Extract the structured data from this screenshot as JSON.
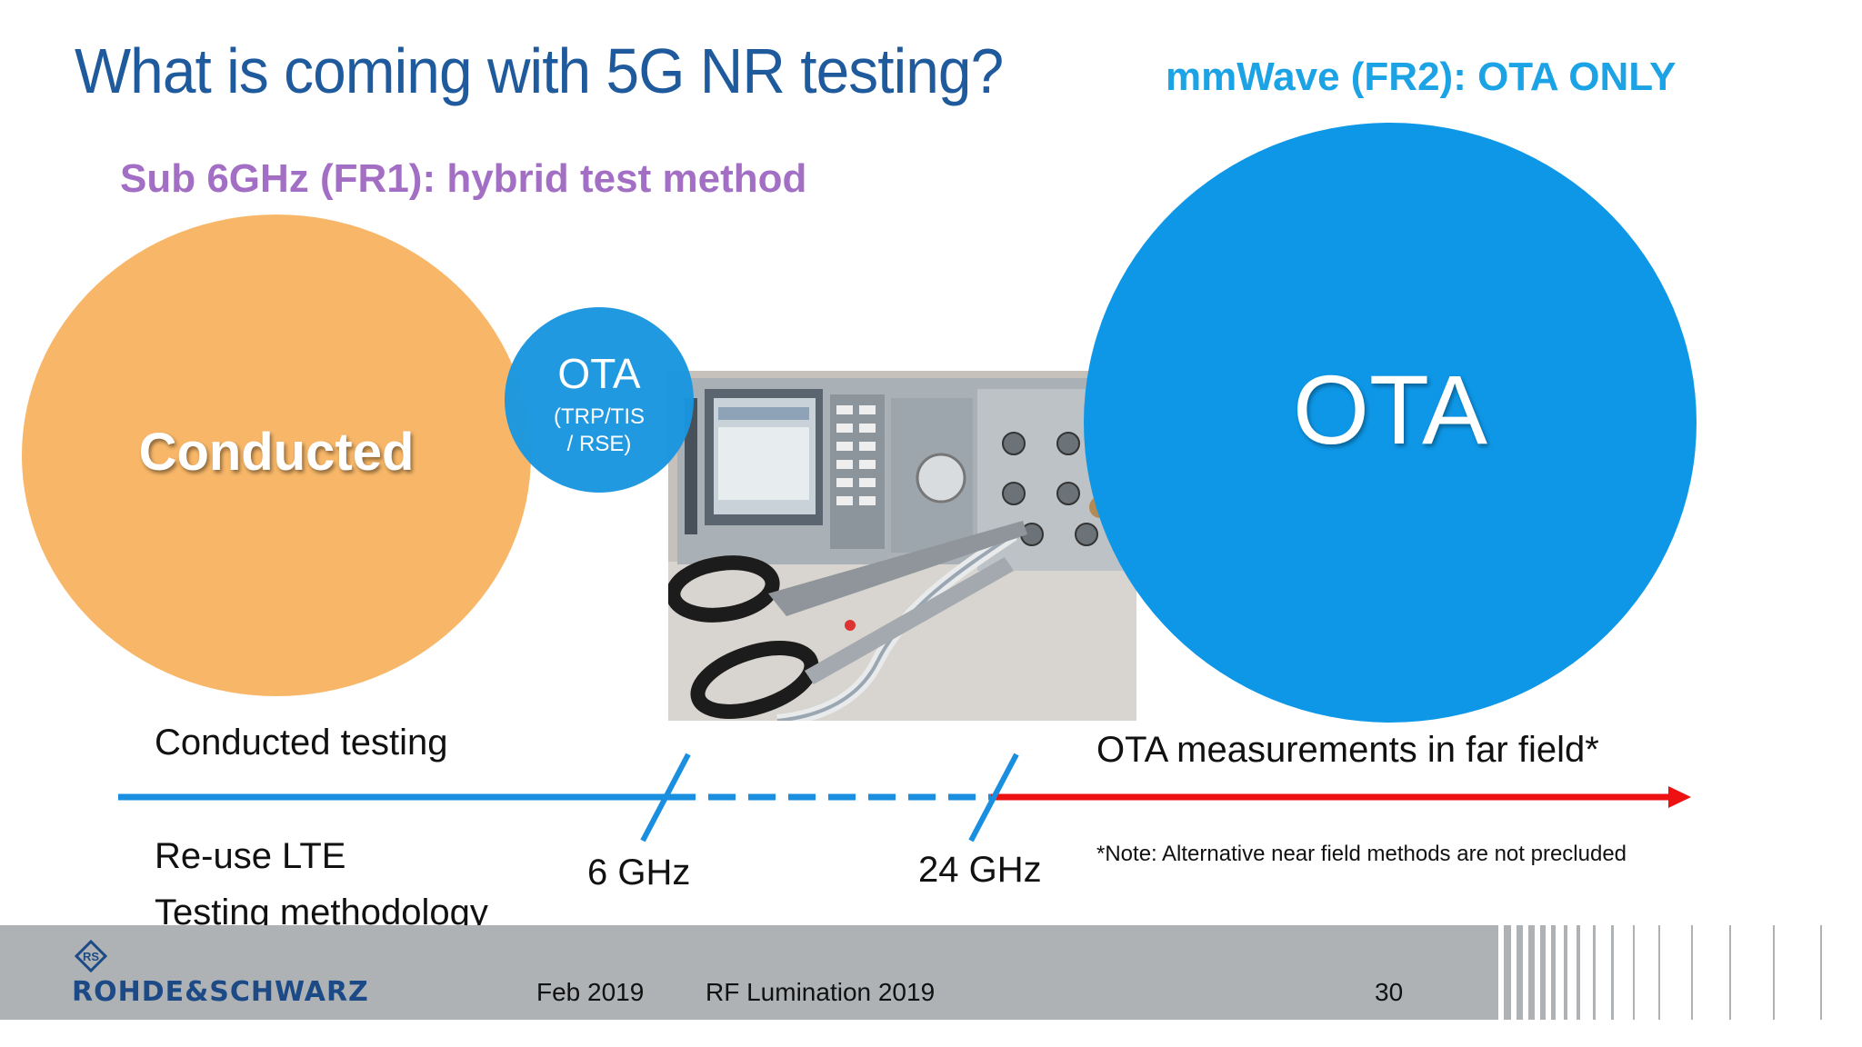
{
  "slide": {
    "title": "What is coming with 5G NR testing?",
    "fr2_heading": "mmWave (FR2): OTA ONLY",
    "fr1_heading": "Sub 6GHz (FR1): hybrid test method",
    "conducted_label": "Conducted",
    "ota_small_title": "OTA",
    "ota_small_sub1": "(TRP/TIS",
    "ota_small_sub2": "/ RSE)",
    "ota_big_label": "OTA",
    "conducted_testing": "Conducted testing",
    "ota_far_field": "OTA measurements in far field*",
    "reuse_line1": "Re-use LTE",
    "reuse_line2": "Testing methodology",
    "freq_6": "6 GHz",
    "freq_24": "24 GHz",
    "note": "*Note: Alternative near field methods are not precluded"
  },
  "footer": {
    "date": "Feb 2019",
    "event": "RF Lumination 2019",
    "page": "30",
    "logo": "ROHDE&SCHWARZ",
    "logo_mark": "RS"
  },
  "colors": {
    "title": "#1f5a9c",
    "fr2_heading": "#1ba3e6",
    "fr1_heading": "#a36fc4",
    "conducted_circle": "#f8b768",
    "ota_circle": "#0e97e7",
    "timeline_blue": "#1a8fe0",
    "timeline_red": "#ee1111",
    "footer_bg": "#aeb2b5"
  }
}
